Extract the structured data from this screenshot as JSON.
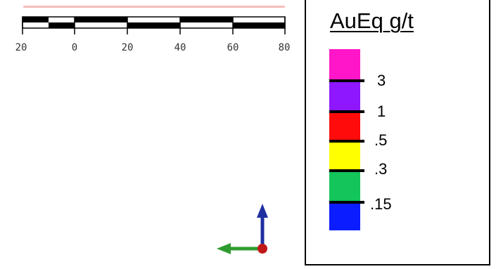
{
  "scale_bar": {
    "labels": [
      "20",
      "0",
      "20",
      "40",
      "60",
      "80"
    ]
  },
  "legend": {
    "title": "AuEq g/t",
    "colors": {
      "magenta": "#ff16c8",
      "purple": "#8f17ff",
      "red": "#ff0b0b",
      "yellow": "#ffff00",
      "green": "#13c55a",
      "blue": "#0b1dff"
    },
    "thresholds": [
      "3",
      "1",
      ".5",
      ".3",
      ".15"
    ]
  },
  "axes_icon": {
    "colors": {
      "x": "#2f9b2f",
      "y": "#1f2fa0",
      "origin": "#c01818"
    }
  }
}
